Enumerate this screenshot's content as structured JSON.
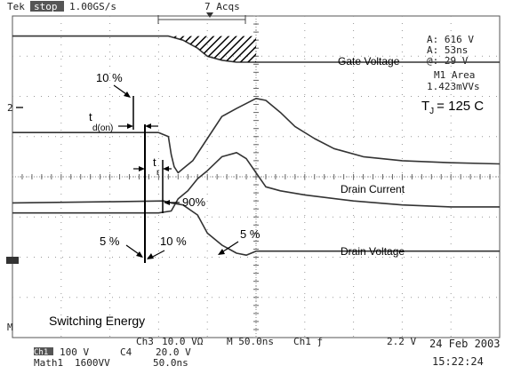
{
  "chart_data": {
    "type": "line",
    "instrument": {
      "brand": "Tek",
      "status": "stop",
      "sample_rate": "1.00GS/s",
      "acquisitions": "7 Acqs"
    },
    "readout": [
      "A: 616 V",
      "A: 53ns",
      "@: 29 V",
      "M1 Area",
      "1.423mVVs"
    ],
    "condition": "T",
    "condition_sub": "J",
    "condition_value": "= 125 C",
    "channel_settings": {
      "ch_label": "Ch1",
      "ch1": "100 V",
      "ch2": "C4",
      "ch2_scale": "20.0 V",
      "ch3": "Ch3",
      "ch3_scale": "10.0 VΩ",
      "timebase": "M 50.0ns",
      "trigger": "Ch1 ƒ",
      "trigger_level": "2.2 V",
      "math": "Math1",
      "math_scale": "1600VV",
      "math_time": "50.0ns"
    },
    "date": "24 Feb 2003",
    "time": "15:22:24",
    "markers": {
      "ch2": "2",
      "ch1": "1",
      "math": "M"
    },
    "series": [
      {
        "name": "Gate Voltage",
        "x": [
          0,
          100,
          150,
          160,
          163,
          166,
          170,
          175,
          185,
          200,
          215,
          230,
          250,
          260,
          275,
          290,
          310,
          330,
          360,
          400,
          450,
          500
        ],
        "y": [
          -1.1,
          -1.1,
          -1.1,
          -1.0,
          -0.55,
          -0.25,
          -0.1,
          -0.2,
          -0.4,
          -0.95,
          -1.5,
          -1.7,
          -1.95,
          -1.9,
          -1.6,
          -1.25,
          -0.95,
          -0.7,
          -0.5,
          -0.4,
          -0.35,
          -0.32
        ]
      },
      {
        "name": "Drain Current",
        "x": [
          0,
          150,
          163,
          170,
          180,
          190,
          200,
          215,
          230,
          240,
          250,
          260,
          275,
          300,
          350,
          400,
          450,
          500
        ],
        "y": [
          0.9,
          0.9,
          0.85,
          0.55,
          0.35,
          0.05,
          -0.15,
          -0.5,
          -0.6,
          -0.45,
          -0.1,
          0.25,
          0.35,
          0.45,
          0.6,
          0.7,
          0.75,
          0.75
        ]
      },
      {
        "name": "Drain Voltage",
        "x": [
          0,
          100,
          155,
          163,
          175,
          190,
          200,
          215,
          230,
          240,
          250,
          300,
          400,
          500
        ],
        "y": [
          0.65,
          0.62,
          0.6,
          0.65,
          0.7,
          0.95,
          1.4,
          1.7,
          1.9,
          1.95,
          1.85,
          1.85,
          1.85,
          1.85
        ]
      },
      {
        "name": "Switching Energy",
        "x": [
          0,
          160,
          175,
          190,
          200,
          215,
          230,
          240,
          250,
          500
        ],
        "y": [
          -3.5,
          -3.5,
          -3.4,
          -3.2,
          -3.0,
          -2.9,
          -2.85,
          -2.85,
          -2.85,
          -2.85
        ]
      }
    ],
    "annotations": {
      "p10_top": "10 %",
      "td_on": "t",
      "td_on_sub": "d(on)",
      "tr": "t",
      "tr_sub": "r",
      "p90": "90%",
      "p5_left": "5 %",
      "p10_bottom": "10 %",
      "p5_right": "5 %"
    },
    "xlabel": "",
    "ylabel": "",
    "grid": true
  }
}
